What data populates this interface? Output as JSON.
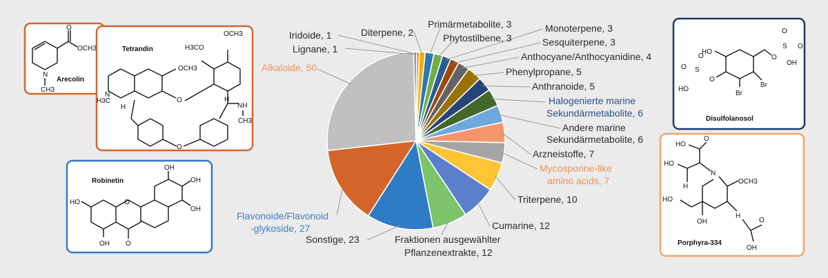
{
  "chart_data": {
    "type": "pie",
    "title": "",
    "slices": [
      {
        "label": "Iridoide, 1",
        "value": 1,
        "color": "#e38a3f"
      },
      {
        "label": "Diterpene, 2",
        "value": 2,
        "color": "#f0b000"
      },
      {
        "label": "Primärmetabolite, 3",
        "value": 3,
        "color": "#2e75b6"
      },
      {
        "label": "Phytostilbene, 3",
        "value": 3,
        "color": "#70ad47"
      },
      {
        "label": "Monoterpene, 3",
        "value": 3,
        "color": "#255e91"
      },
      {
        "label": "Sesquiterpene, 3",
        "value": 3,
        "color": "#9e480e"
      },
      {
        "label": "Anthocyane/Anthocyanidine, 4",
        "value": 4,
        "color": "#636363"
      },
      {
        "label": "Phenylpropane, 5",
        "value": 5,
        "color": "#997300"
      },
      {
        "label": "Anthranoide, 5",
        "value": 5,
        "color": "#264478"
      },
      {
        "label": "Halogenierte marine Sekundärmetabolite, 6",
        "value": 6,
        "color": "#43682b"
      },
      {
        "label": "Andere marine Sekundärmetabolite, 6",
        "value": 6,
        "color": "#6fa8dc"
      },
      {
        "label": "Arzneistoffe, 7",
        "value": 7,
        "color": "#f4956a"
      },
      {
        "label": "Mycosporine-like amino acids, 7",
        "value": 7,
        "color": "#a5a5a5"
      },
      {
        "label": "Triterpene, 10",
        "value": 10,
        "color": "#ffc535"
      },
      {
        "label": "Cumarine, 12",
        "value": 12,
        "color": "#5b7fcb"
      },
      {
        "label": "Fraktionen ausgewählter Pflanzenextrakte, 12",
        "value": 12,
        "color": "#7cc36a"
      },
      {
        "label": "Sonstige, 23",
        "value": 23,
        "color": "#2e7cc5"
      },
      {
        "label": "Flavonoide/Flavonoid-glykoside, 27",
        "value": 27,
        "color": "#d4642a"
      },
      {
        "label": "Alkaloide, 50",
        "value": 50,
        "color": "#c0c0c0"
      },
      {
        "label": "Lignane, 1",
        "value": 1,
        "color": "#8a8a8a"
      }
    ]
  },
  "labels": {
    "iridoide": "Iridoide, 1",
    "lignane": "Lignane, 1",
    "diterpene": "Diterpene, 2",
    "primaer": "Primärmetabolite, 3",
    "phytostilbene": "Phytostilbene, 3",
    "monoterpene": "Monoterpene, 3",
    "sesquiterpene": "Sesquiterpene, 3",
    "anthocyane": "Anthocyane/Anthocyanidine, 4",
    "phenylpropane": "Phenylpropane, 5",
    "anthranoide": "Anthranoide, 5",
    "halogen_1": "Halogenierte marine",
    "halogen_2": "Sekundärmetabolite, 6",
    "andere_1": "Andere marine",
    "andere_2": "Sekundärmetabolite, 6",
    "arznei": "Arzneistoffe, 7",
    "myco_1": "Mycosporine-like",
    "myco_2": "amino acids, 7",
    "triterpene": "Triterpene, 10",
    "cumarine": "Cumarine, 12",
    "fraktionen_1": "Fraktionen ausgewählter",
    "fraktionen_2": "Pflanzenextrakte, 12",
    "sonstige": "Sonstige, 23",
    "flavo_1": "Flavonoide/Flavonoid",
    "flavo_2": "-glykoside, 27",
    "alkaloide": "Alkaloide, 50"
  },
  "molecules": {
    "arecolin": "Arecolin",
    "tetrandin": "Tetrandin",
    "robinetin": "Robinetin",
    "disulfolanosol": "Disulfolanosol",
    "porphyra": "Porphyra-334"
  },
  "atoms": {
    "o": "O",
    "n": "N",
    "h": "H",
    "oh": "OH",
    "ho": "HO",
    "s": "S",
    "br": "Br",
    "nh": "NH",
    "och3": "OCH3",
    "h3co": "H3CO",
    "ch3": "CH3",
    "h3c": "H3C",
    "ch3_dash": "—CH3"
  },
  "colors": {
    "orange_frame": "#d0672c",
    "blue_frame": "#2f7bc3",
    "navy_frame": "#1f3864",
    "peach_frame": "#f0a46c",
    "orange_text": "#f0915a",
    "blue_text": "#3f7fc1",
    "navy_text": "#2a4f8a"
  }
}
